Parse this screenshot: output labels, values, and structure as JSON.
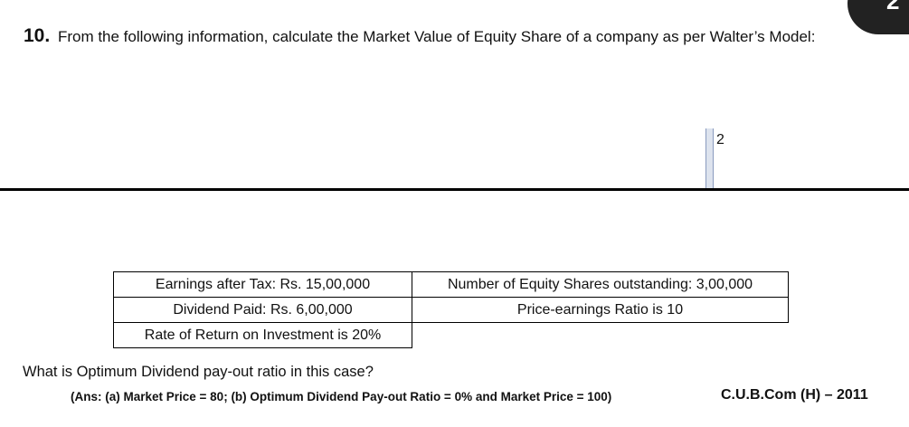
{
  "question": {
    "number": "10.",
    "text": "From the following information, calculate the Market Value of Equity Share of a company as per Walter’s Model:"
  },
  "page_number": "2",
  "table": {
    "rows": [
      [
        "Earnings after Tax: Rs. 15,00,000",
        "Number of Equity Shares outstanding: 3,00,000"
      ],
      [
        "Dividend Paid: Rs. 6,00,000",
        "Price-earnings Ratio is 10"
      ],
      [
        "Rate of Return on Investment is 20%",
        ""
      ]
    ]
  },
  "sub_question": "What is Optimum Dividend pay-out ratio in this case?",
  "answer": "(Ans: (a) Market Price = 80; (b) Optimum Dividend Pay-out Ratio = 0% and Market Price = 100)",
  "source": "C.U.B.Com (H) – 2011",
  "corner_tab_digit": "2",
  "colors": {
    "text": "#111111",
    "rule": "#000000",
    "corner_tab": "#222222"
  }
}
